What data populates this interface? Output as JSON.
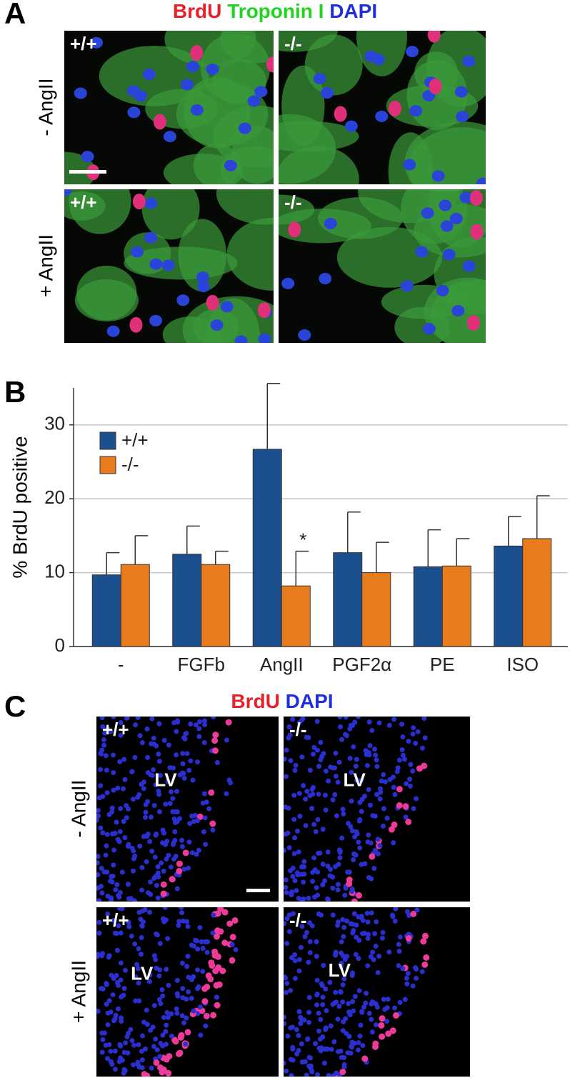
{
  "panel_a": {
    "label": "A",
    "stains": [
      {
        "text": "BrdU",
        "color": "#e8202a"
      },
      {
        "text": "Troponin I",
        "color": "#22d422"
      },
      {
        "text": "DAPI",
        "color": "#1f2fe0"
      }
    ],
    "column_labels": [
      "+/+",
      "-/-"
    ],
    "row_labels": [
      "- AngII",
      "+ AngII"
    ]
  },
  "panel_b": {
    "label": "B"
  },
  "chart_data": {
    "type": "bar",
    "ylabel": "% BrdU positive",
    "categories": [
      "-",
      "FGFb",
      "AngII",
      "PGF2α",
      "PE",
      "ISO"
    ],
    "series": [
      {
        "name": "+/+",
        "color": "#1b4f8e",
        "values": [
          9.7,
          12.5,
          26.7,
          12.7,
          10.8,
          13.6
        ],
        "errors": [
          3.0,
          3.8,
          8.9,
          5.5,
          5.0,
          4.0
        ]
      },
      {
        "name": "-/-",
        "color": "#e87b1e",
        "values": [
          11.1,
          11.1,
          8.2,
          10.0,
          10.9,
          14.6
        ],
        "errors": [
          3.9,
          1.8,
          4.7,
          4.1,
          3.7,
          5.8
        ]
      }
    ],
    "annotation": "*",
    "ylim": [
      0,
      35
    ],
    "yticks": [
      0,
      10,
      20,
      30
    ],
    "grid": true,
    "legend": "upper left"
  },
  "panel_c": {
    "label": "C",
    "stains": [
      {
        "text": "BrdU",
        "color": "#e8202a"
      },
      {
        "text": "DAPI",
        "color": "#1f2fe0"
      }
    ],
    "column_labels": [
      "+/+",
      "-/-"
    ],
    "row_labels": [
      "- AngII",
      "+ AngII"
    ],
    "region_label": "LV"
  }
}
